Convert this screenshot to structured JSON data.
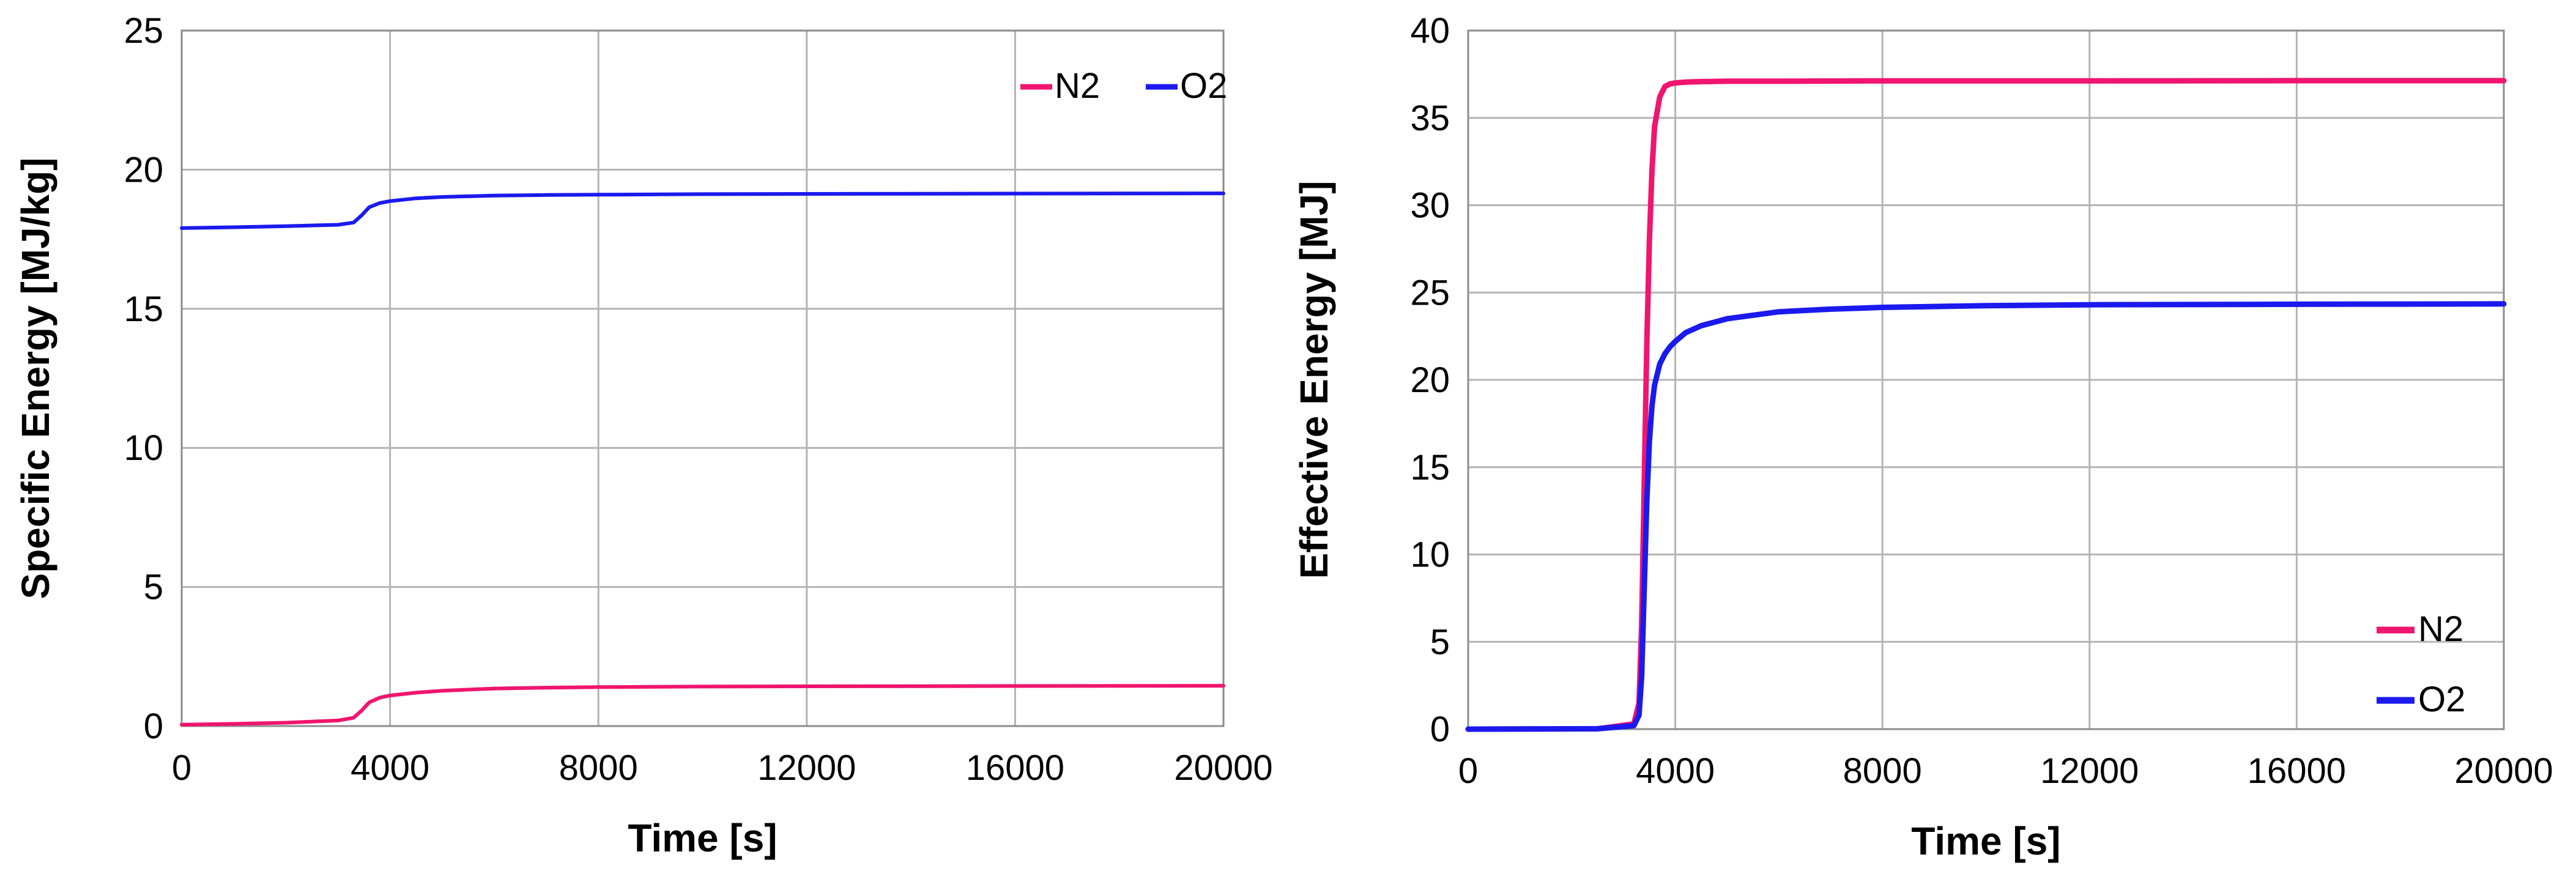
{
  "chart_data": [
    {
      "type": "line",
      "title": "",
      "xlabel": "Time [s]",
      "ylabel": "Specific Energy [MJ/kg]",
      "xlim": [
        0,
        20000
      ],
      "ylim": [
        0,
        25
      ],
      "x_ticks": [
        "0",
        "4000",
        "8000",
        "12000",
        "16000",
        "20000"
      ],
      "y_ticks": [
        "0",
        "5",
        "10",
        "15",
        "20",
        "25"
      ],
      "grid": true,
      "legend_position": "top-right",
      "legend_layout": "horizontal",
      "series": [
        {
          "name": "N2",
          "color": "#f0156e",
          "x": [
            0,
            1000,
            2000,
            3000,
            3300,
            3450,
            3600,
            3800,
            4000,
            4500,
            5000,
            6000,
            7000,
            8000,
            10000,
            12000,
            16000,
            20000
          ],
          "y": [
            0.05,
            0.08,
            0.12,
            0.2,
            0.3,
            0.55,
            0.85,
            1.02,
            1.1,
            1.2,
            1.27,
            1.35,
            1.38,
            1.4,
            1.42,
            1.43,
            1.44,
            1.45
          ]
        },
        {
          "name": "O2",
          "color": "#1a1aee",
          "x": [
            0,
            1000,
            2000,
            3000,
            3300,
            3450,
            3600,
            3800,
            4000,
            4500,
            5000,
            6000,
            7000,
            8000,
            10000,
            12000,
            16000,
            20000
          ],
          "y": [
            17.9,
            17.93,
            17.97,
            18.02,
            18.1,
            18.35,
            18.65,
            18.8,
            18.87,
            18.97,
            19.02,
            19.07,
            19.09,
            19.1,
            19.12,
            19.13,
            19.14,
            19.15
          ]
        }
      ]
    },
    {
      "type": "line",
      "title": "",
      "xlabel": "Time [s]",
      "ylabel": "Effective Energy [MJ]",
      "xlim": [
        0,
        20000
      ],
      "ylim": [
        0,
        40
      ],
      "x_ticks": [
        "0",
        "4000",
        "8000",
        "12000",
        "16000",
        "20000"
      ],
      "y_ticks": [
        "0",
        "5",
        "10",
        "15",
        "20",
        "25",
        "30",
        "35",
        "40"
      ],
      "grid": true,
      "legend_position": "bottom-right",
      "legend_layout": "vertical",
      "series": [
        {
          "name": "N2",
          "color": "#f0156e",
          "x": [
            0,
            2500,
            3200,
            3300,
            3350,
            3400,
            3450,
            3500,
            3550,
            3600,
            3700,
            3800,
            3900,
            4000,
            4200,
            4500,
            5000,
            6000,
            8000,
            12000,
            16000,
            20000
          ],
          "y": [
            0,
            0.02,
            0.3,
            1.5,
            6,
            14,
            22,
            28,
            32,
            34.5,
            36.2,
            36.8,
            36.95,
            37.0,
            37.05,
            37.08,
            37.1,
            37.1,
            37.12,
            37.12,
            37.13,
            37.13
          ]
        },
        {
          "name": "O2",
          "color": "#1a1aee",
          "x": [
            0,
            2500,
            3200,
            3300,
            3350,
            3400,
            3450,
            3500,
            3550,
            3600,
            3700,
            3800,
            3900,
            4000,
            4200,
            4500,
            5000,
            6000,
            7000,
            8000,
            10000,
            12000,
            16000,
            20000
          ],
          "y": [
            0,
            0.02,
            0.2,
            0.8,
            3,
            8,
            13,
            16.5,
            18.5,
            19.7,
            20.9,
            21.5,
            21.9,
            22.2,
            22.7,
            23.1,
            23.5,
            23.9,
            24.05,
            24.15,
            24.25,
            24.3,
            24.33,
            24.35
          ]
        }
      ]
    }
  ]
}
